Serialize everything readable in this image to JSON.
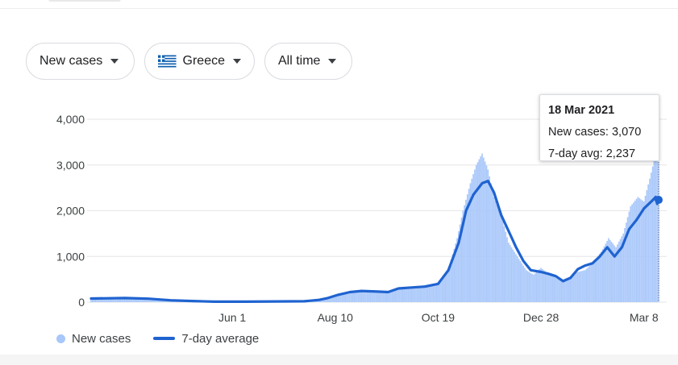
{
  "filters": {
    "metric": "New cases",
    "country": "Greece",
    "period": "All time"
  },
  "tooltip": {
    "date": "18 Mar 2021",
    "new_cases_text": "New cases: 3,070",
    "avg_text": "7-day avg: 2,237"
  },
  "legend": {
    "new_cases": "New cases",
    "avg": "7-day average"
  },
  "colors": {
    "bars": "#a8c7fa",
    "avg_line": "#1f63d0",
    "grid": "#e6e6e6",
    "flag_blue": "#0d5eaf"
  },
  "chart_data": {
    "type": "bar",
    "title": "",
    "xlabel": "",
    "ylabel": "",
    "ylim": [
      0,
      4000
    ],
    "yticks": [
      0,
      1000,
      2000,
      3000,
      4000
    ],
    "y_tick_labels": [
      "0",
      "1,000",
      "2,000",
      "3,000",
      "4,000"
    ],
    "x_range": [
      "2020-02-26",
      "2021-03-18"
    ],
    "x_ticks": [
      {
        "date": "2020-06-01",
        "label": "Jun 1"
      },
      {
        "date": "2020-08-10",
        "label": "Aug 10"
      },
      {
        "date": "2020-10-19",
        "label": "Oct 19"
      },
      {
        "date": "2020-12-28",
        "label": "Dec 28"
      },
      {
        "date": "2021-03-08",
        "label": "Mar 8"
      }
    ],
    "grid": true,
    "legend_position": "bottom-left",
    "series": [
      {
        "name": "New cases",
        "type": "bar",
        "points": [
          [
            "2020-02-26",
            50
          ],
          [
            "2020-03-15",
            90
          ],
          [
            "2020-04-01",
            70
          ],
          [
            "2020-04-15",
            40
          ],
          [
            "2020-05-01",
            20
          ],
          [
            "2020-05-15",
            15
          ],
          [
            "2020-06-01",
            10
          ],
          [
            "2020-06-15",
            15
          ],
          [
            "2020-07-01",
            20
          ],
          [
            "2020-07-15",
            30
          ],
          [
            "2020-08-01",
            60
          ],
          [
            "2020-08-10",
            150
          ],
          [
            "2020-08-25",
            240
          ],
          [
            "2020-09-05",
            230
          ],
          [
            "2020-09-15",
            220
          ],
          [
            "2020-09-25",
            330
          ],
          [
            "2020-10-05",
            340
          ],
          [
            "2020-10-15",
            400
          ],
          [
            "2020-10-19",
            420
          ],
          [
            "2020-10-26",
            700
          ],
          [
            "2020-11-01",
            1400
          ],
          [
            "2020-11-05",
            2000
          ],
          [
            "2020-11-10",
            2600
          ],
          [
            "2020-11-14",
            3000
          ],
          [
            "2020-11-18",
            3250
          ],
          [
            "2020-11-22",
            2900
          ],
          [
            "2020-11-26",
            2300
          ],
          [
            "2020-12-01",
            1900
          ],
          [
            "2020-12-06",
            1300
          ],
          [
            "2020-12-12",
            1000
          ],
          [
            "2020-12-18",
            700
          ],
          [
            "2020-12-23",
            600
          ],
          [
            "2020-12-28",
            750
          ],
          [
            "2021-01-03",
            600
          ],
          [
            "2021-01-09",
            500
          ],
          [
            "2021-01-15",
            500
          ],
          [
            "2021-01-21",
            650
          ],
          [
            "2021-01-27",
            700
          ],
          [
            "2021-02-01",
            850
          ],
          [
            "2021-02-07",
            1100
          ],
          [
            "2021-02-12",
            1400
          ],
          [
            "2021-02-17",
            1200
          ],
          [
            "2021-02-22",
            1500
          ],
          [
            "2021-02-27",
            2100
          ],
          [
            "2021-03-04",
            2300
          ],
          [
            "2021-03-08",
            2200
          ],
          [
            "2021-03-12",
            2700
          ],
          [
            "2021-03-15",
            3100
          ],
          [
            "2021-03-18",
            3070
          ]
        ]
      },
      {
        "name": "7-day average",
        "type": "line",
        "points": [
          [
            "2020-02-26",
            80
          ],
          [
            "2020-03-20",
            90
          ],
          [
            "2020-04-05",
            75
          ],
          [
            "2020-04-20",
            40
          ],
          [
            "2020-05-05",
            25
          ],
          [
            "2020-05-20",
            10
          ],
          [
            "2020-06-10",
            10
          ],
          [
            "2020-07-01",
            15
          ],
          [
            "2020-07-20",
            20
          ],
          [
            "2020-07-30",
            50
          ],
          [
            "2020-08-05",
            90
          ],
          [
            "2020-08-12",
            160
          ],
          [
            "2020-08-20",
            220
          ],
          [
            "2020-08-28",
            245
          ],
          [
            "2020-09-08",
            230
          ],
          [
            "2020-09-15",
            220
          ],
          [
            "2020-09-22",
            300
          ],
          [
            "2020-10-01",
            320
          ],
          [
            "2020-10-10",
            340
          ],
          [
            "2020-10-19",
            400
          ],
          [
            "2020-10-26",
            700
          ],
          [
            "2020-11-02",
            1300
          ],
          [
            "2020-11-07",
            2000
          ],
          [
            "2020-11-12",
            2350
          ],
          [
            "2020-11-18",
            2600
          ],
          [
            "2020-11-22",
            2650
          ],
          [
            "2020-11-26",
            2400
          ],
          [
            "2020-12-01",
            1900
          ],
          [
            "2020-12-06",
            1550
          ],
          [
            "2020-12-11",
            1200
          ],
          [
            "2020-12-16",
            900
          ],
          [
            "2020-12-21",
            700
          ],
          [
            "2020-12-28",
            660
          ],
          [
            "2021-01-02",
            620
          ],
          [
            "2021-01-07",
            570
          ],
          [
            "2021-01-12",
            460
          ],
          [
            "2021-01-17",
            530
          ],
          [
            "2021-01-22",
            720
          ],
          [
            "2021-01-27",
            800
          ],
          [
            "2021-02-01",
            850
          ],
          [
            "2021-02-06",
            1000
          ],
          [
            "2021-02-11",
            1200
          ],
          [
            "2021-02-16",
            1000
          ],
          [
            "2021-02-21",
            1200
          ],
          [
            "2021-02-26",
            1600
          ],
          [
            "2021-03-03",
            1800
          ],
          [
            "2021-03-08",
            2050
          ],
          [
            "2021-03-13",
            2200
          ],
          [
            "2021-03-16",
            2300
          ],
          [
            "2021-03-17",
            2150
          ],
          [
            "2021-03-18",
            2237
          ]
        ]
      }
    ],
    "highlight": {
      "date": "2021-03-18",
      "new_cases": 3070,
      "avg": 2237
    }
  }
}
